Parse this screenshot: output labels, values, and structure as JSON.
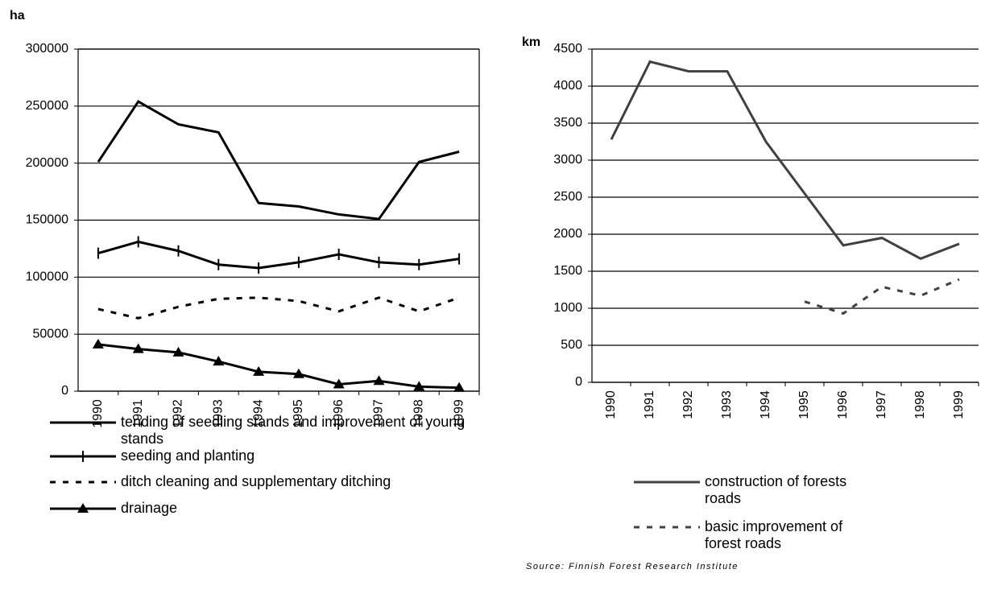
{
  "chart_data": [
    {
      "type": "line",
      "y_label": "ha",
      "categories": [
        "1990",
        "1991",
        "1992",
        "1993",
        "1994",
        "1995",
        "1996",
        "1997",
        "1998",
        "1999"
      ],
      "ylim": [
        0,
        300000
      ],
      "yticks": [
        0,
        50000,
        100000,
        150000,
        200000,
        250000,
        300000
      ],
      "grid": true,
      "frame": true,
      "series": [
        {
          "name": "tending of seedling stands and improvement of young stands",
          "color": "#000000",
          "values": [
            201000,
            254000,
            234000,
            227000,
            165000,
            162000,
            155000,
            151000,
            201000,
            210000
          ]
        },
        {
          "name": "seeding and planting",
          "color": "#000000",
          "marker": "plus",
          "values": [
            121000,
            131000,
            123000,
            111000,
            108000,
            113000,
            120000,
            113000,
            111000,
            116000
          ]
        },
        {
          "name": "ditch cleaning and supplementary ditching",
          "color": "#000000",
          "dash": true,
          "values": [
            72000,
            64000,
            74000,
            81000,
            82000,
            79000,
            70000,
            82000,
            70000,
            82000
          ]
        },
        {
          "name": "drainage",
          "color": "#000000",
          "marker": "triangle",
          "values": [
            41000,
            37000,
            34000,
            26000,
            17000,
            15000,
            6000,
            9000,
            4000,
            3000
          ]
        }
      ]
    },
    {
      "type": "line",
      "y_label": "km",
      "categories": [
        "1990",
        "1991",
        "1992",
        "1993",
        "1994",
        "1995",
        "1996",
        "1997",
        "1998",
        "1999"
      ],
      "ylim": [
        0,
        4500
      ],
      "yticks": [
        0,
        500,
        1000,
        1500,
        2000,
        2500,
        3000,
        3500,
        4000,
        4500
      ],
      "grid": true,
      "frame": false,
      "source": "Source: Finnish Forest Research Institute",
      "series": [
        {
          "name": "construction of forests roads",
          "color": "#404040",
          "values": [
            3280,
            4330,
            4200,
            4200,
            3250,
            2550,
            1850,
            1950,
            1670,
            1870
          ]
        },
        {
          "name": "basic improvement of forest roads",
          "color": "#404040",
          "dash": true,
          "values": [
            null,
            null,
            null,
            null,
            null,
            1090,
            930,
            1290,
            1170,
            1390
          ]
        }
      ]
    }
  ]
}
